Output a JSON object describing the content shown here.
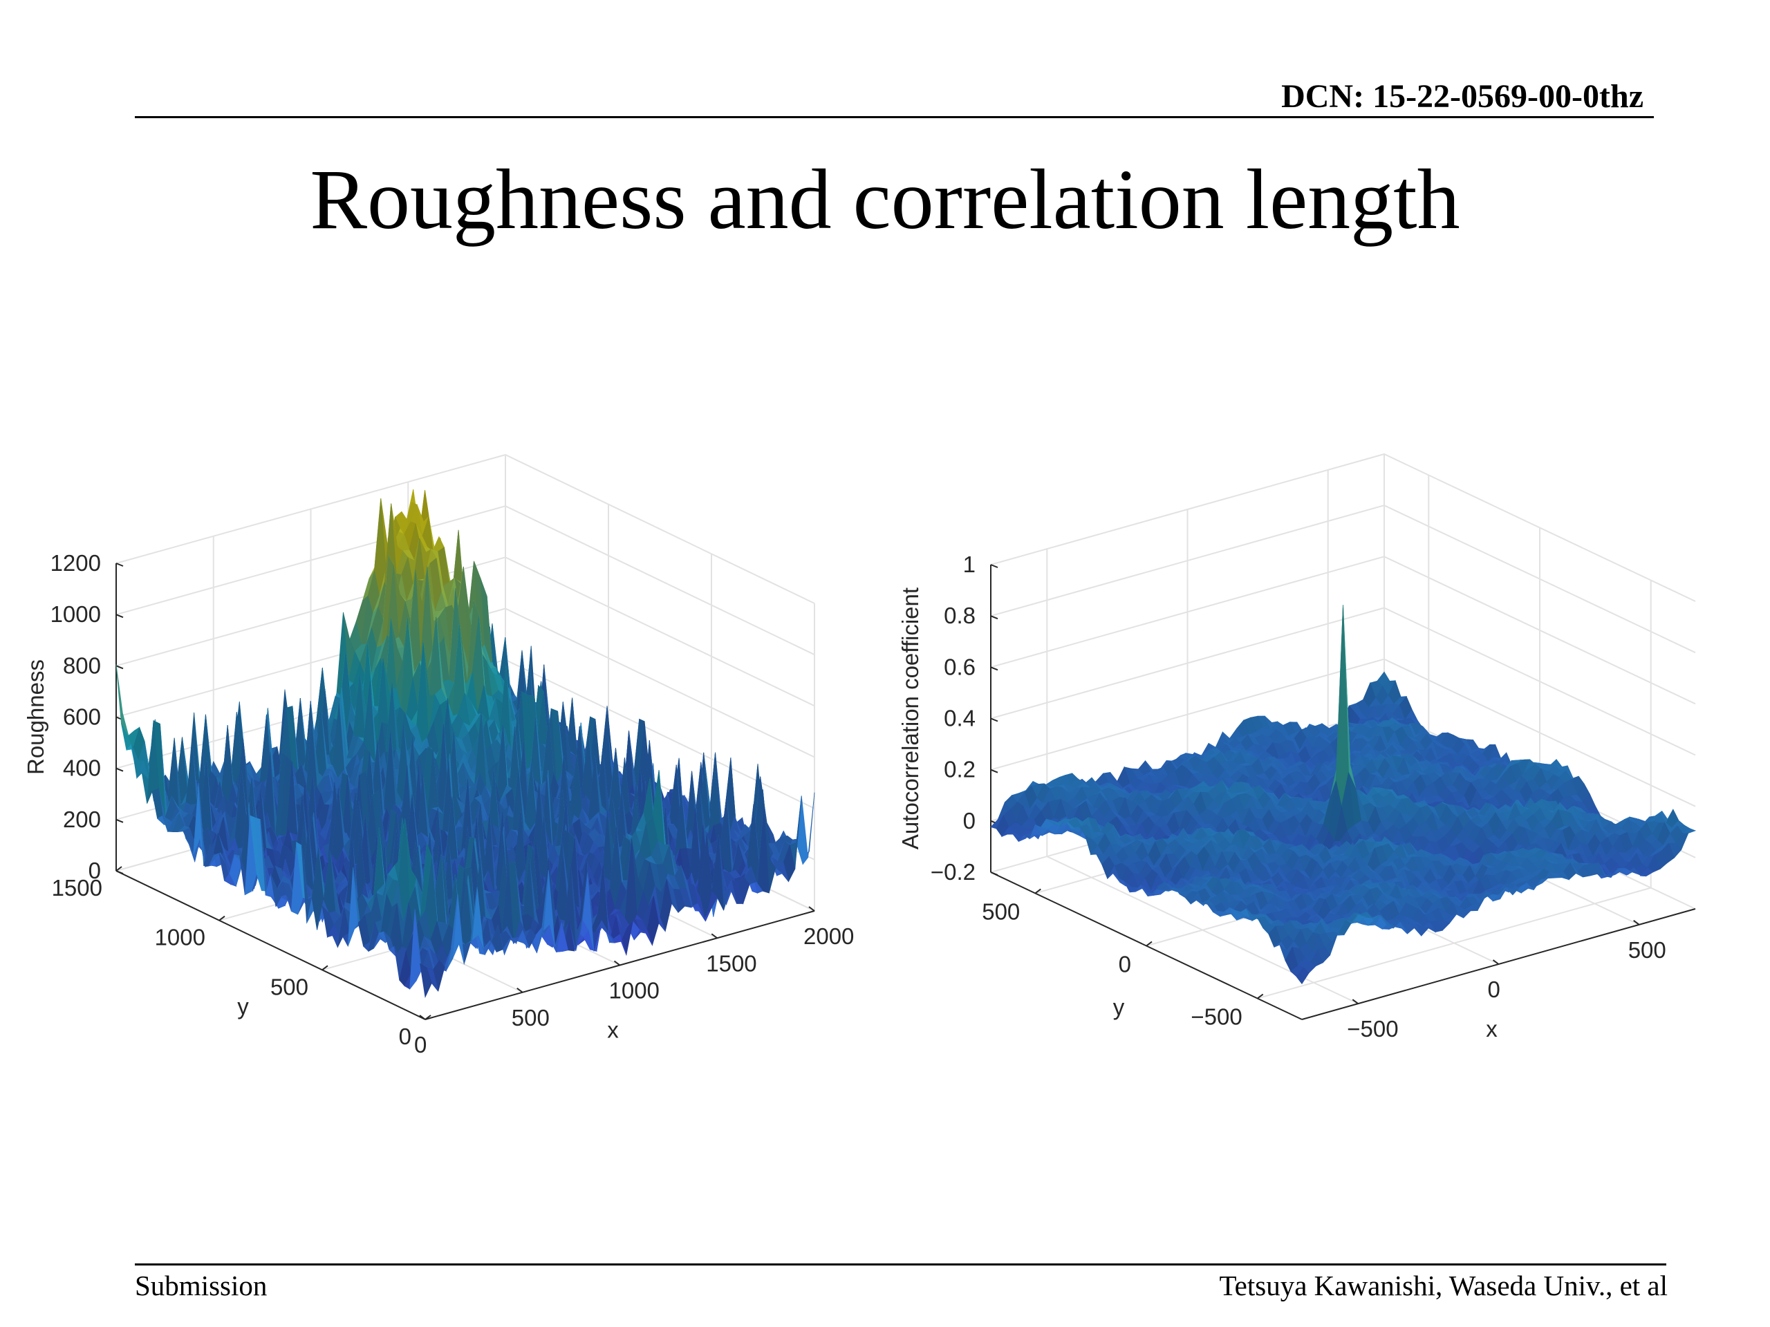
{
  "header": {
    "dcn": "DCN: 15-22-0569-00-0thz"
  },
  "title": "Roughness and correlation length",
  "footer": {
    "left": "Submission",
    "right": "Tetsuya Kawanishi, Waseda Univ., et al"
  },
  "colors": {
    "surface_low": "#3b3ed9",
    "surface_mid": "#1fb0c8",
    "surface_high": "#d9d21a",
    "grid": "#e2e2e2",
    "axis": "#262626"
  },
  "chart_data": [
    {
      "type": "surface3d",
      "title": "",
      "xlabel": "x",
      "ylabel": "y",
      "zlabel": "Roughness",
      "xlim": [
        0,
        2000
      ],
      "ylim": [
        0,
        1500
      ],
      "zlim": [
        0,
        1200
      ],
      "xticks": [
        0,
        500,
        1000,
        1500,
        2000
      ],
      "xtick_labels": [
        "0",
        "500",
        "1000",
        "1500",
        "2000"
      ],
      "yticks": [
        0,
        500,
        1000,
        1500
      ],
      "ytick_labels": [
        "0",
        "500",
        "1000",
        "1500"
      ],
      "zticks": [
        0,
        200,
        400,
        600,
        800,
        1000,
        1200
      ],
      "ztick_labels": [
        "0",
        "200",
        "400",
        "600",
        "800",
        "1000",
        "1200"
      ],
      "grid": true,
      "colormap": "parula",
      "peaks": [
        {
          "x": 1450,
          "y": 1450,
          "z": 1000
        },
        {
          "x": 20,
          "y": 1480,
          "z": 480
        },
        {
          "x": 1300,
          "y": 150,
          "z": 500
        },
        {
          "x": 150,
          "y": 250,
          "z": 420
        }
      ]
    },
    {
      "type": "surface3d",
      "title": "",
      "xlabel": "x",
      "ylabel": "y",
      "zlabel": "Autocorrelation coefficient",
      "xlim": [
        -700,
        700
      ],
      "ylim": [
        -700,
        700
      ],
      "zlim": [
        -0.2,
        1
      ],
      "xticks": [
        -500,
        0,
        500
      ],
      "xtick_labels": [
        "−500",
        "0",
        "500"
      ],
      "yticks": [
        -500,
        0,
        500
      ],
      "ytick_labels": [
        "−500",
        "0",
        "500"
      ],
      "zticks": [
        -0.2,
        0,
        0.2,
        0.4,
        0.6,
        0.8,
        1
      ],
      "ztick_labels": [
        "−0.2",
        "0",
        "0.2",
        "0.4",
        "0.6",
        "0.8",
        "1"
      ],
      "grid": true,
      "colormap": "parula",
      "peak": {
        "x": 0,
        "y": 0,
        "z": 0.92
      },
      "background_level": 0.05
    }
  ]
}
